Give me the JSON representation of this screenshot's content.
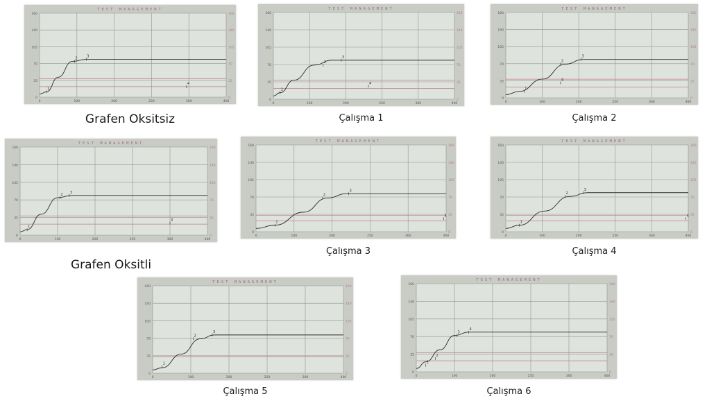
{
  "screen_title": "TEST MANAGEMENT",
  "colors": {
    "photo_bg": "#c9cbc5",
    "plot_bg": "#dfe3dd",
    "grid": "#8e958e",
    "curve": "#2b2b2b",
    "ref_line": "#c07a90",
    "right_axis": "#b07a98",
    "header": "#9a6a86"
  },
  "axes": {
    "xlim": [
      0,
      400
    ],
    "ylim": [
      0,
      160
    ],
    "x_ticks": [
      "0",
      "100",
      "200",
      "250",
      "300",
      "400"
    ],
    "y_ticks": [
      "0",
      "35",
      "70",
      "105",
      "140",
      "160"
    ]
  },
  "chart_data": [
    {
      "type": "line",
      "title": "TEST MANAGEMENT",
      "caption": "Grafen Oksitsiz",
      "xlim": [
        0,
        400
      ],
      "ylim": [
        0,
        160
      ],
      "grid": true,
      "series": [
        {
          "x": [
            0,
            15,
            40,
            70,
            100,
            400
          ],
          "y": [
            6,
            10,
            38,
            68,
            72,
            72
          ]
        }
      ],
      "markers": [
        {
          "x": 15,
          "y": 10,
          "label": "1"
        },
        {
          "x": 75,
          "y": 68,
          "label": "2"
        },
        {
          "x": 100,
          "y": 72,
          "label": "3"
        },
        {
          "x": 315,
          "y": 20,
          "label": "4"
        }
      ],
      "ref_y": [
        35,
        20
      ]
    },
    {
      "type": "line",
      "title": "TEST MANAGEMENT",
      "caption": "Çalışma 1",
      "xlim": [
        0,
        400
      ],
      "ylim": [
        0,
        160
      ],
      "grid": true,
      "series": [
        {
          "x": [
            0,
            15,
            45,
            90,
            130,
            400
          ],
          "y": [
            6,
            12,
            35,
            63,
            72,
            72
          ]
        }
      ],
      "markers": [
        {
          "x": 15,
          "y": 12,
          "label": "1"
        },
        {
          "x": 110,
          "y": 63,
          "label": "2"
        },
        {
          "x": 150,
          "y": 72,
          "label": "3"
        },
        {
          "x": 210,
          "y": 24,
          "label": "4"
        }
      ],
      "ref_y": [
        35,
        20
      ]
    },
    {
      "type": "line",
      "title": "TEST MANAGEMENT",
      "caption": "Çalışma 2",
      "xlim": [
        0,
        400
      ],
      "ylim": [
        0,
        160
      ],
      "grid": true,
      "series": [
        {
          "x": [
            0,
            30,
            80,
            130,
            170,
            400
          ],
          "y": [
            6,
            12,
            35,
            63,
            72,
            72
          ]
        }
      ],
      "markers": [
        {
          "x": 40,
          "y": 12,
          "label": "1"
        },
        {
          "x": 120,
          "y": 63,
          "label": "2"
        },
        {
          "x": 165,
          "y": 72,
          "label": "3"
        },
        {
          "x": 120,
          "y": 28,
          "label": "4"
        }
      ],
      "ref_y": [
        35,
        20
      ]
    },
    {
      "type": "line",
      "title": "TEST MANAGEMENT",
      "caption": "Grafen Oksitli",
      "xlim": [
        0,
        400
      ],
      "ylim": [
        0,
        160
      ],
      "grid": true,
      "series": [
        {
          "x": [
            0,
            15,
            45,
            80,
            110,
            400
          ],
          "y": [
            6,
            10,
            38,
            68,
            72,
            72
          ]
        }
      ],
      "markers": [
        {
          "x": 15,
          "y": 10,
          "label": "1"
        },
        {
          "x": 85,
          "y": 68,
          "label": "2"
        },
        {
          "x": 105,
          "y": 72,
          "label": "3"
        },
        {
          "x": 320,
          "y": 22,
          "label": "4"
        }
      ],
      "ref_y": [
        35,
        20
      ]
    },
    {
      "type": "line",
      "title": "TEST MANAGEMENT",
      "caption": "Çalışma 3",
      "xlim": [
        0,
        400
      ],
      "ylim": [
        0,
        160
      ],
      "grid": true,
      "series": [
        {
          "x": [
            0,
            40,
            100,
            150,
            190,
            400
          ],
          "y": [
            6,
            12,
            36,
            62,
            70,
            70
          ]
        }
      ],
      "markers": [
        {
          "x": 40,
          "y": 12,
          "label": "1"
        },
        {
          "x": 140,
          "y": 62,
          "label": "2"
        },
        {
          "x": 195,
          "y": 70,
          "label": "3"
        },
        {
          "x": 395,
          "y": 24,
          "label": "4"
        }
      ],
      "ref_y": [
        30,
        20
      ]
    },
    {
      "type": "line",
      "title": "TEST MANAGEMENT",
      "caption": "Çalışma 4",
      "xlim": [
        0,
        400
      ],
      "ylim": [
        0,
        160
      ],
      "grid": true,
      "series": [
        {
          "x": [
            0,
            30,
            85,
            140,
            180,
            400
          ],
          "y": [
            6,
            12,
            38,
            65,
            72,
            72
          ]
        }
      ],
      "markers": [
        {
          "x": 30,
          "y": 12,
          "label": "1"
        },
        {
          "x": 130,
          "y": 65,
          "label": "2"
        },
        {
          "x": 170,
          "y": 72,
          "label": "3"
        },
        {
          "x": 395,
          "y": 24,
          "label": "4"
        }
      ],
      "ref_y": [
        30,
        20
      ]
    },
    {
      "type": "line",
      "title": "TEST MANAGEMENT",
      "caption": "Çalışma 5",
      "xlim": [
        0,
        400
      ],
      "ylim": [
        0,
        160
      ],
      "grid": true,
      "series": [
        {
          "x": [
            0,
            20,
            60,
            100,
            130,
            400
          ],
          "y": [
            6,
            10,
            35,
            63,
            70,
            70
          ]
        }
      ],
      "markers": [
        {
          "x": 20,
          "y": 12,
          "label": "1"
        },
        {
          "x": 85,
          "y": 63,
          "label": "2"
        },
        {
          "x": 125,
          "y": 70,
          "label": "3"
        }
      ],
      "ref_y": [
        30
      ]
    },
    {
      "type": "line",
      "title": "TEST MANAGEMENT",
      "caption": "Çalışma 6",
      "xlim": [
        0,
        400
      ],
      "ylim": [
        0,
        160
      ],
      "grid": true,
      "series": [
        {
          "x": [
            0,
            20,
            50,
            80,
            110,
            400
          ],
          "y": [
            6,
            18,
            40,
            66,
            72,
            72
          ]
        }
      ],
      "markers": [
        {
          "x": 20,
          "y": 12,
          "label": "1"
        },
        {
          "x": 40,
          "y": 24,
          "label": "2"
        },
        {
          "x": 85,
          "y": 66,
          "label": "3"
        },
        {
          "x": 110,
          "y": 72,
          "label": "4"
        }
      ],
      "ref_y": [
        35,
        20
      ]
    }
  ]
}
